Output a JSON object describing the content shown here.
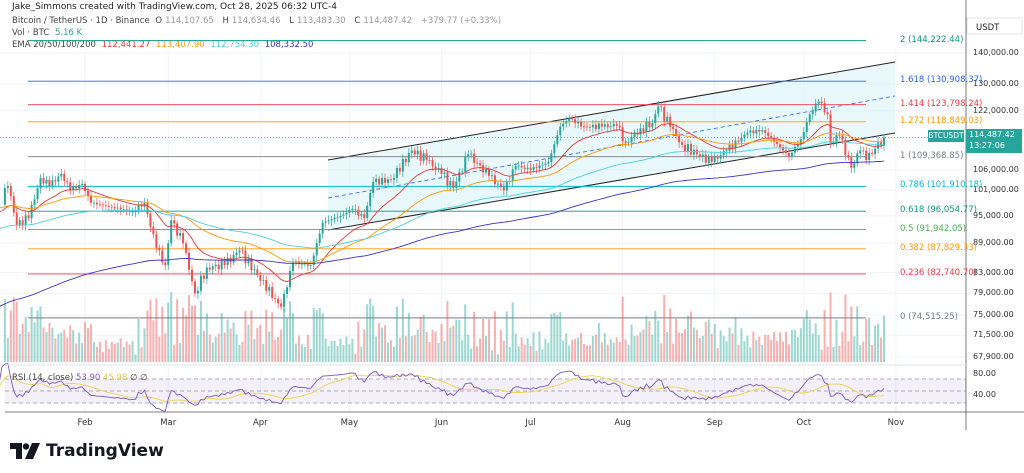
{
  "header": {
    "text": "Jake_Simmons created with TradingView.com, Oct 28, 2025 06:32 UTC-4"
  },
  "legend": {
    "symbol": "Bitcoin / TetherUS · 1D · Binance",
    "o_label": "O",
    "o": "114,107.65",
    "h_label": "H",
    "h": "114,634.46",
    "l_label": "L",
    "l": "113,483.30",
    "c_label": "C",
    "c": "114,487.42",
    "change": "+379.77 (+0.33%)",
    "vol_label": "Vol · BTC",
    "vol": "5.16 K",
    "ema_label": "EMA 20/50/100/200",
    "ema": [
      "112,441.27",
      "113,407.90",
      "112,754.30",
      "108,332.50"
    ]
  },
  "colors": {
    "up": "#26a69a",
    "down": "#ef5350",
    "ema20": "#e53935",
    "ema50": "#ff9800",
    "ema100": "#4dd0e1",
    "ema200": "#3a32d0",
    "rsi": "#7e57c2",
    "rsi_ma": "#f0d34a"
  },
  "price_axis": {
    "unit": "USDT",
    "ticks": [
      "140,000.00",
      "130,000.00",
      "122,000.00",
      "106,000.00",
      "101,000.00",
      "95,000.00",
      "89,000.00",
      "83,000.00",
      "79,000.00",
      "75,000.00",
      "71,500.00",
      "67,900.00"
    ],
    "scale": "log"
  },
  "rsi_axis": {
    "ticks": [
      "80.00",
      "40.00"
    ]
  },
  "current": {
    "symbol": "BTCUSDT",
    "price": "114,487.42",
    "countdown": "13:27:06"
  },
  "fib_levels": [
    {
      "label": "2 (144,222.44)",
      "price": 144222.44,
      "color": "#089981"
    },
    {
      "label": "1.618 (130,908.37)",
      "price": 130908.37,
      "color": "#2962ff"
    },
    {
      "label": "1.414 (123,798.24)",
      "price": 123798.24,
      "color": "#f23645"
    },
    {
      "label": "1.272 (118,849.03)",
      "price": 118849.03,
      "color": "#ff9800"
    },
    {
      "label": "1 (109,368.85)",
      "price": 109368.85,
      "color": "#787b86"
    },
    {
      "label": "0.786 (101,910.18)",
      "price": 101910.18,
      "color": "#00bcd4"
    },
    {
      "label": "0.618 (96,054.77)",
      "price": 96054.77,
      "color": "#089981"
    },
    {
      "label": "0.5 (91,942.05)",
      "price": 91942.05,
      "color": "#4caf50"
    },
    {
      "label": "0.382 (87,829.33)",
      "price": 87829.33,
      "color": "#ff9800"
    },
    {
      "label": "0.236 (82,740.70)",
      "price": 82740.7,
      "color": "#f23645"
    },
    {
      "label": "0 (74,515.25)",
      "price": 74515.25,
      "color": "#787b86"
    }
  ],
  "time_axis": {
    "months": [
      "Feb",
      "Mar",
      "Apr",
      "May",
      "Jun",
      "Jul",
      "Aug",
      "Sep",
      "Oct",
      "Nov"
    ]
  },
  "rsi": {
    "label": "RSI (14, close)",
    "value": "53.90",
    "ma_value": "45.98",
    "extra": [
      "∅",
      "∅"
    ]
  },
  "brand": "TradingView",
  "chart_data": {
    "type": "candlestick",
    "scale": "log",
    "ylim": [
      66000,
      150000
    ],
    "closes": [
      [
        "2025-01-01",
        94000
      ],
      [
        "2025-01-06",
        102000
      ],
      [
        "2025-01-09",
        93000
      ],
      [
        "2025-01-13",
        94500
      ],
      [
        "2025-01-17",
        104000
      ],
      [
        "2025-01-20",
        102000
      ],
      [
        "2025-01-24",
        105000
      ],
      [
        "2025-01-27",
        101000
      ],
      [
        "2025-01-31",
        102500
      ],
      [
        "2025-02-03",
        98000
      ],
      [
        "2025-02-10",
        97000
      ],
      [
        "2025-02-17",
        96000
      ],
      [
        "2025-02-21",
        98000
      ],
      [
        "2025-02-25",
        88000
      ],
      [
        "2025-02-28",
        84500
      ],
      [
        "2025-03-02",
        94000
      ],
      [
        "2025-03-06",
        89000
      ],
      [
        "2025-03-10",
        79000
      ],
      [
        "2025-03-14",
        84000
      ],
      [
        "2025-03-20",
        84500
      ],
      [
        "2025-03-25",
        87500
      ],
      [
        "2025-03-31",
        82500
      ],
      [
        "2025-04-06",
        78000
      ],
      [
        "2025-04-08",
        76500
      ],
      [
        "2025-04-12",
        85000
      ],
      [
        "2025-04-18",
        84500
      ],
      [
        "2025-04-22",
        93500
      ],
      [
        "2025-04-28",
        95000
      ],
      [
        "2025-05-02",
        96500
      ],
      [
        "2025-05-06",
        94500
      ],
      [
        "2025-05-09",
        103000
      ],
      [
        "2025-05-15",
        103500
      ],
      [
        "2025-05-22",
        111000
      ],
      [
        "2025-05-27",
        108500
      ],
      [
        "2025-06-01",
        105000
      ],
      [
        "2025-06-05",
        101500
      ],
      [
        "2025-06-10",
        110000
      ],
      [
        "2025-06-17",
        104500
      ],
      [
        "2025-06-22",
        100900
      ],
      [
        "2025-06-26",
        107000
      ],
      [
        "2025-07-01",
        106000
      ],
      [
        "2025-07-07",
        108000
      ],
      [
        "2025-07-11",
        117500
      ],
      [
        "2025-07-14",
        119800
      ],
      [
        "2025-07-19",
        117500
      ],
      [
        "2025-07-25",
        117500
      ],
      [
        "2025-07-30",
        117800
      ],
      [
        "2025-08-02",
        113000
      ],
      [
        "2025-08-07",
        117000
      ],
      [
        "2025-08-11",
        118500
      ],
      [
        "2025-08-13",
        123300
      ],
      [
        "2025-08-17",
        117500
      ],
      [
        "2025-08-21",
        112500
      ],
      [
        "2025-08-26",
        110000
      ],
      [
        "2025-08-31",
        108000
      ],
      [
        "2025-09-05",
        111000
      ],
      [
        "2025-09-12",
        115800
      ],
      [
        "2025-09-17",
        116500
      ],
      [
        "2025-09-22",
        112700
      ],
      [
        "2025-09-26",
        109500
      ],
      [
        "2025-09-30",
        114000
      ],
      [
        "2025-10-03",
        121000
      ],
      [
        "2025-10-06",
        124700
      ],
      [
        "2025-10-09",
        121000
      ],
      [
        "2025-10-10",
        113000
      ],
      [
        "2025-10-13",
        115000
      ],
      [
        "2025-10-17",
        106500
      ],
      [
        "2025-10-20",
        111000
      ],
      [
        "2025-10-22",
        108500
      ],
      [
        "2025-10-25",
        111500
      ],
      [
        "2025-10-28",
        114487.42
      ]
    ]
  }
}
